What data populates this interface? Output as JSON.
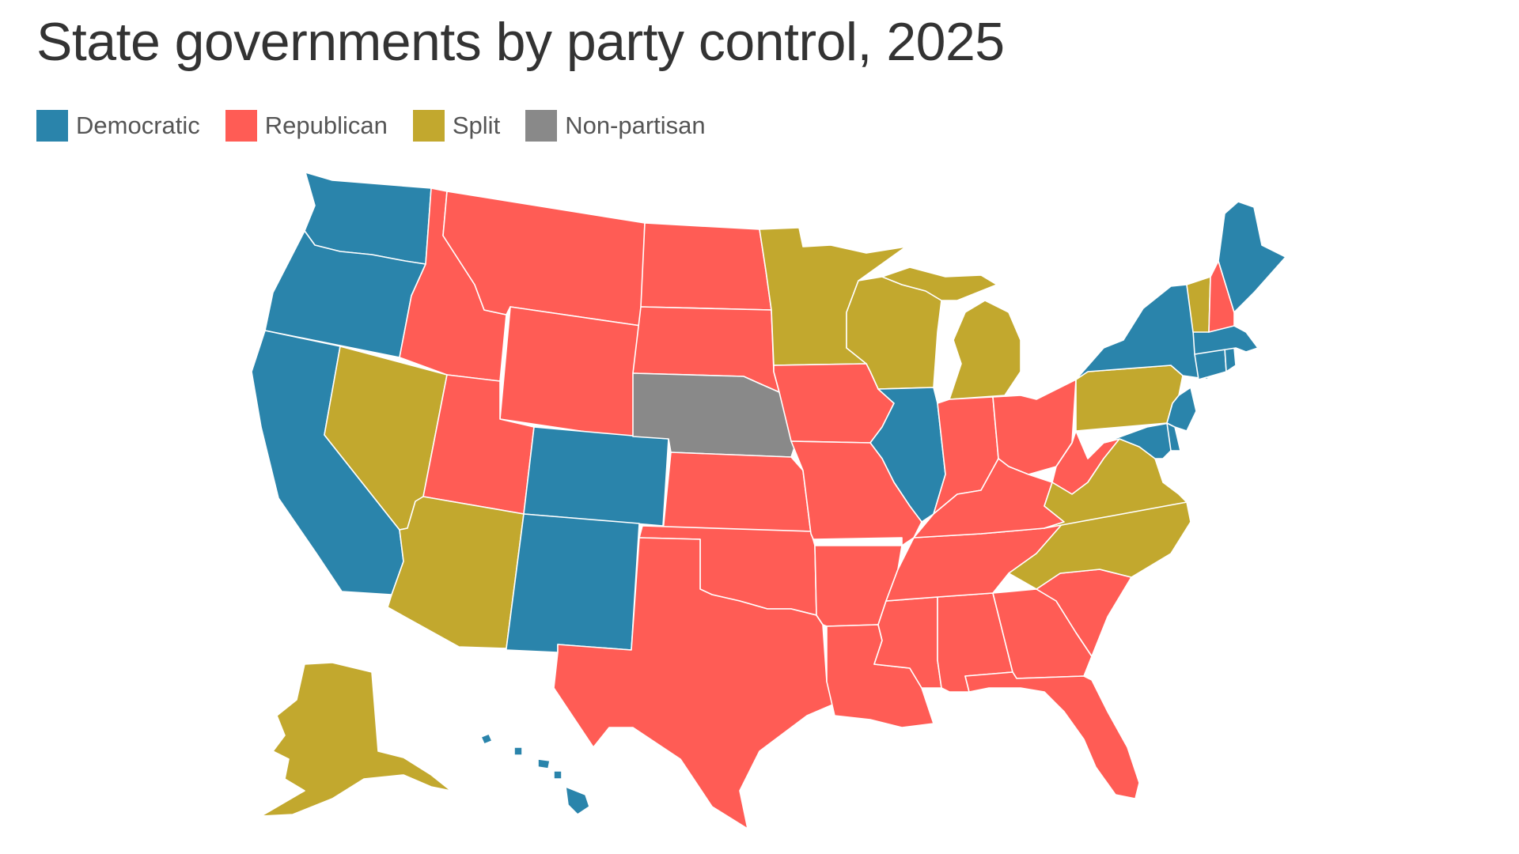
{
  "title": "State governments by party control, 2025",
  "legend": [
    {
      "label": "Democratic",
      "color": "#2a84ab"
    },
    {
      "label": "Republican",
      "color": "#ff5c55"
    },
    {
      "label": "Split",
      "color": "#c2a82e"
    },
    {
      "label": "Non-partisan",
      "color": "#898989"
    }
  ],
  "colors": {
    "Democratic": "#2a84ab",
    "Republican": "#ff5c55",
    "Split": "#c2a82e",
    "Non-partisan": "#898989"
  },
  "states": {
    "WA": "Democratic",
    "OR": "Democratic",
    "CA": "Democratic",
    "CO": "Democratic",
    "NM": "Democratic",
    "IL": "Democratic",
    "NY": "Democratic",
    "ME": "Democratic",
    "MA": "Democratic",
    "CT": "Democratic",
    "RI": "Democratic",
    "NJ": "Democratic",
    "DE": "Democratic",
    "MD": "Democratic",
    "HI": "Democratic",
    "ID": "Republican",
    "MT": "Republican",
    "WY": "Republican",
    "UT": "Republican",
    "ND": "Republican",
    "SD": "Republican",
    "KS": "Republican",
    "OK": "Republican",
    "TX": "Republican",
    "IA": "Republican",
    "MO": "Republican",
    "AR": "Republican",
    "LA": "Republican",
    "MS": "Republican",
    "AL": "Republican",
    "TN": "Republican",
    "KY": "Republican",
    "IN": "Republican",
    "OH": "Republican",
    "WV": "Republican",
    "GA": "Republican",
    "FL": "Republican",
    "SC": "Republican",
    "NH": "Republican",
    "NV": "Split",
    "AZ": "Split",
    "MN": "Split",
    "WI": "Split",
    "MI": "Split",
    "PA": "Split",
    "VA": "Split",
    "NC": "Split",
    "VT": "Split",
    "AK": "Split",
    "NE": "Non-partisan"
  }
}
